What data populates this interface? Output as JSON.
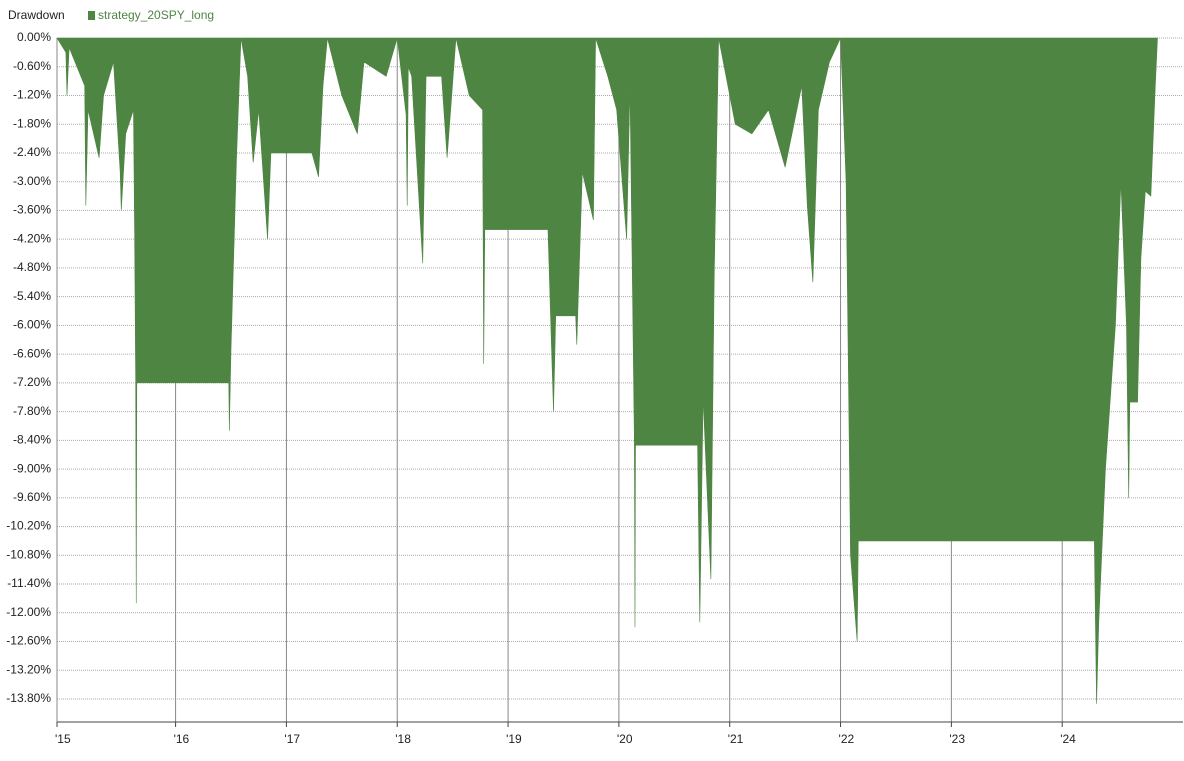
{
  "chart_data": {
    "type": "area",
    "title": "Drawdown",
    "x": [
      2014.93,
      2015.01,
      2015.02,
      2015.04,
      2015.18,
      2015.19,
      2015.21,
      2015.31,
      2015.35,
      2015.44,
      2015.5,
      2015.51,
      2015.55,
      2015.62,
      2015.63,
      2015.64,
      2015.645,
      2015.65,
      2016.48,
      2016.485,
      2016.5,
      2016.55,
      2016.59,
      2016.65,
      2016.7,
      2016.75,
      2016.83,
      2016.86,
      2017.23,
      2017.29,
      2017.33,
      2017.37,
      2017.5,
      2017.64,
      2017.7,
      2017.9,
      2018.0,
      2018.08,
      2018.09,
      2018.1,
      2018.13,
      2018.23,
      2018.26,
      2018.4,
      2018.45,
      2018.53,
      2018.65,
      2018.77,
      2018.78,
      2018.79,
      2019.36,
      2019.39,
      2019.41,
      2019.43,
      2019.61,
      2019.62,
      2019.67,
      2019.77,
      2019.79,
      2019.9,
      2019.98,
      2020.07,
      2020.1,
      2020.14,
      2020.145,
      2020.15,
      2020.71,
      2020.73,
      2020.76,
      2020.83,
      2020.86,
      2020.9,
      2021.05,
      2021.2,
      2021.35,
      2021.5,
      2021.65,
      2021.7,
      2021.75,
      2021.8,
      2021.9,
      2022.0,
      2022.05,
      2022.07,
      2022.09,
      2022.15,
      2022.16,
      2024.29,
      2024.31,
      2024.33,
      2024.39,
      2024.48,
      2024.53,
      2024.58,
      2024.6,
      2024.61,
      2024.68,
      2024.71,
      2024.75,
      2024.8,
      2024.84,
      2024.86
    ],
    "series": [
      {
        "name": "strategy_20SPY_long",
        "color": "#4e8542",
        "values": [
          0,
          -0.3,
          -1.2,
          -0.2,
          -1.0,
          -3.5,
          -1.5,
          -2.5,
          -1.2,
          -0.5,
          -2.8,
          -3.6,
          -2.0,
          -1.5,
          -4.0,
          -7.2,
          -11.8,
          -7.2,
          -7.2,
          -8.2,
          -6.5,
          -2.5,
          0,
          -0.8,
          -2.6,
          -1.5,
          -4.2,
          -2.4,
          -2.4,
          -2.9,
          -1.0,
          0,
          -1.2,
          -2.0,
          -0.5,
          -0.8,
          0,
          -1.6,
          -3.5,
          -0.6,
          -0.8,
          -4.7,
          -0.8,
          -0.8,
          -2.5,
          0,
          -1.2,
          -1.5,
          -6.8,
          -4.0,
          -4.0,
          -6.3,
          -7.8,
          -5.8,
          -5.8,
          -6.4,
          -2.8,
          -3.8,
          0,
          -0.8,
          -1.5,
          -4.2,
          -1.0,
          -8.5,
          -12.3,
          -8.5,
          -8.5,
          -12.2,
          -7.5,
          -11.3,
          -5.0,
          0,
          -1.8,
          -2.0,
          -1.5,
          -2.7,
          -1.0,
          -3.5,
          -5.1,
          -1.5,
          -0.5,
          0,
          -3.0,
          -6.8,
          -10.8,
          -12.6,
          -10.5,
          -10.5,
          -13.9,
          -12.2,
          -9.0,
          -6.0,
          -3.0,
          -6.0,
          -9.6,
          -7.6,
          -7.6,
          -4.6,
          -3.2,
          -3.3,
          -1.0,
          0
        ]
      }
    ],
    "xlim": [
      2014.93,
      2025.09
    ],
    "xticks": [
      {
        "value": 2014.93,
        "label": "'15"
      },
      {
        "value": 2016,
        "label": "'16"
      },
      {
        "value": 2017,
        "label": "'17"
      },
      {
        "value": 2018,
        "label": "'18"
      },
      {
        "value": 2019,
        "label": "'19"
      },
      {
        "value": 2020,
        "label": "'20"
      },
      {
        "value": 2021,
        "label": "'21"
      },
      {
        "value": 2022,
        "label": "'22"
      },
      {
        "value": 2023,
        "label": "'23"
      },
      {
        "value": 2024,
        "label": "'24"
      }
    ],
    "ylim": [
      -14.28,
      0
    ],
    "yticks": [
      {
        "value": 0,
        "label": "0.00%"
      },
      {
        "value": -0.6,
        "label": "-0.60%"
      },
      {
        "value": -1.2,
        "label": "-1.20%"
      },
      {
        "value": -1.8,
        "label": "-1.80%"
      },
      {
        "value": -2.4,
        "label": "-2.40%"
      },
      {
        "value": -3.0,
        "label": "-3.00%"
      },
      {
        "value": -3.6,
        "label": "-3.60%"
      },
      {
        "value": -4.2,
        "label": "-4.20%"
      },
      {
        "value": -4.8,
        "label": "-4.80%"
      },
      {
        "value": -5.4,
        "label": "-5.40%"
      },
      {
        "value": -6.0,
        "label": "-6.00%"
      },
      {
        "value": -6.6,
        "label": "-6.60%"
      },
      {
        "value": -7.2,
        "label": "-7.20%"
      },
      {
        "value": -7.8,
        "label": "-7.80%"
      },
      {
        "value": -8.4,
        "label": "-8.40%"
      },
      {
        "value": -9.0,
        "label": "-9.00%"
      },
      {
        "value": -9.6,
        "label": "-9.60%"
      },
      {
        "value": -10.2,
        "label": "-10.20%"
      },
      {
        "value": -10.8,
        "label": "-10.80%"
      },
      {
        "value": -11.4,
        "label": "-11.40%"
      },
      {
        "value": -12.0,
        "label": "-12.00%"
      },
      {
        "value": -12.6,
        "label": "-12.60%"
      },
      {
        "value": -13.2,
        "label": "-13.20%"
      },
      {
        "value": -13.8,
        "label": "-13.80%"
      }
    ],
    "grid": true
  }
}
